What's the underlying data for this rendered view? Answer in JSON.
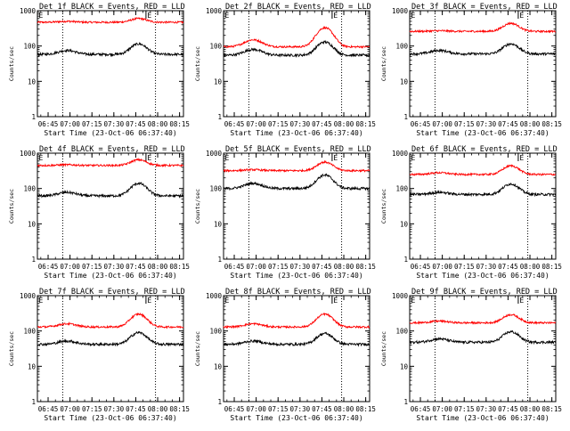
{
  "chart_data": {
    "type": "line",
    "layout": "3x3 grid",
    "yscale": "log",
    "ylim": [
      1,
      1000
    ],
    "ylabel": "Counts/sec",
    "xlabel": "Start Time (23-Oct-06 06:37:40)",
    "x_start": "06:37:40",
    "x_end": "08:17:40",
    "xticks": [
      "06:45",
      "07:00",
      "07:15",
      "07:30",
      "07:45",
      "08:00",
      "08:15"
    ],
    "yticks": [
      "1",
      "10",
      "100",
      "1000"
    ],
    "markers": [
      {
        "time": "06:37:40",
        "label": "E"
      },
      {
        "time": "07:52:00",
        "label": "E"
      }
    ],
    "vlines": [
      "06:55:00",
      "07:58:30"
    ],
    "series_colors": {
      "events": "#000000",
      "lld": "#ff0000"
    },
    "panels": [
      {
        "title": "Det 1f BLACK = Events, RED = LLD",
        "events": {
          "base": 58,
          "bump1": 75,
          "peak": 115
        },
        "lld": {
          "base": 470,
          "bump1": 500,
          "peak": 600
        }
      },
      {
        "title": "Det 2f BLACK = Events, RED = LLD",
        "events": {
          "base": 55,
          "bump1": 80,
          "peak": 130
        },
        "lld": {
          "base": 95,
          "bump1": 150,
          "peak": 330
        }
      },
      {
        "title": "Det 3f BLACK = Events, RED = LLD",
        "events": {
          "base": 60,
          "bump1": 75,
          "peak": 115
        },
        "lld": {
          "base": 260,
          "bump1": 270,
          "peak": 440
        }
      },
      {
        "title": "Det 4f BLACK = Events, RED = LLD",
        "events": {
          "base": 62,
          "bump1": 78,
          "peak": 140
        },
        "lld": {
          "base": 450,
          "bump1": 470,
          "peak": 650
        }
      },
      {
        "title": "Det 5f BLACK = Events, RED = LLD",
        "events": {
          "base": 100,
          "bump1": 140,
          "peak": 240
        },
        "lld": {
          "base": 320,
          "bump1": 340,
          "peak": 560
        }
      },
      {
        "title": "Det 6f BLACK = Events, RED = LLD",
        "events": {
          "base": 68,
          "bump1": 78,
          "peak": 135
        },
        "lld": {
          "base": 250,
          "bump1": 280,
          "peak": 440
        }
      },
      {
        "title": "Det 7f BLACK = Events, RED = LLD",
        "events": {
          "base": 42,
          "bump1": 52,
          "peak": 90
        },
        "lld": {
          "base": 130,
          "bump1": 160,
          "peak": 300
        }
      },
      {
        "title": "Det 8f BLACK = Events, RED = LLD",
        "events": {
          "base": 42,
          "bump1": 52,
          "peak": 85
        },
        "lld": {
          "base": 130,
          "bump1": 160,
          "peak": 300
        }
      },
      {
        "title": "Det 9f BLACK = Events, RED = LLD",
        "events": {
          "base": 48,
          "bump1": 60,
          "peak": 95
        },
        "lld": {
          "base": 170,
          "bump1": 190,
          "peak": 290
        }
      }
    ]
  }
}
